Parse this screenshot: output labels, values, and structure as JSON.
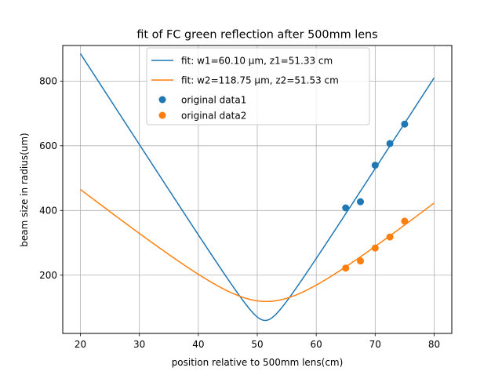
{
  "chart_data": {
    "type": "line",
    "title": "fit of FC green reflection after 500mm lens",
    "xlabel": "position relative to 500mm lens(cm)",
    "ylabel": "beam size in radius(um)",
    "xlim": [
      17,
      83
    ],
    "ylim": [
      20,
      910
    ],
    "xticks": [
      20,
      30,
      40,
      50,
      60,
      70,
      80
    ],
    "yticks": [
      200,
      400,
      600,
      800
    ],
    "grid": true,
    "legend_position": "top-center",
    "fits": [
      {
        "name": "fit: w1=60.10 μm, z1=51.33 cm",
        "color": "#1f77b4",
        "w0": 60.1,
        "z0": 51.33,
        "x_range": [
          20,
          80
        ],
        "x": [
          20,
          25,
          30,
          35,
          40,
          45,
          48,
          50,
          51.33,
          53,
          55,
          60,
          65,
          70,
          75,
          80
        ],
        "y": [
          885,
          741,
          598,
          457,
          320,
          190,
          122,
          81,
          60,
          88,
          128,
          256,
          396,
          538,
          681,
          824
        ]
      },
      {
        "name": "fit: w2=118.75 μm, z2=51.53 cm",
        "color": "#ff7f0e",
        "w0": 118.75,
        "z0": 51.53,
        "x_range": [
          20,
          80
        ],
        "x": [
          20,
          25,
          30,
          35,
          40,
          45,
          50,
          51.53,
          55,
          60,
          65,
          70,
          75,
          80
        ],
        "y": [
          465,
          400,
          335,
          270,
          208,
          158,
          122,
          118,
          130,
          172,
          228,
          290,
          355,
          424
        ]
      }
    ],
    "series": [
      {
        "name": "original data1",
        "color": "#1f77b4",
        "x": [
          65,
          67.5,
          70,
          72.5,
          75
        ],
        "y": [
          408,
          427,
          540,
          607,
          667
        ]
      },
      {
        "name": "original data2",
        "color": "#ff7f0e",
        "x": [
          65,
          67.5,
          70,
          72.5,
          75
        ],
        "y": [
          222,
          244,
          284,
          318,
          367
        ]
      }
    ]
  }
}
